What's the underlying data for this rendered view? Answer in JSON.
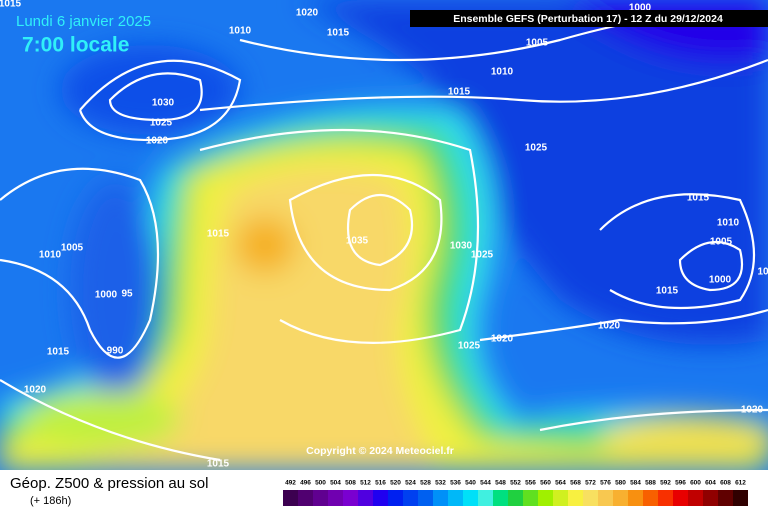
{
  "header": {
    "date": "Lundi 6 janvier 2025",
    "time": "7:00 locale",
    "run": "Ensemble GEFS  (Perturbation 17)  -  12 Z du 29/12/2024"
  },
  "copyright": "Copyright © 2024 Meteociel.fr",
  "footer": {
    "title": "Géop. Z500 & pression au sol",
    "lead": "(+ 186h)"
  },
  "isobar_labels": [
    "1015",
    "1020",
    "1010",
    "1015",
    "1005",
    "1010",
    "1015",
    "1030",
    "1025",
    "1020",
    "1025",
    "1015",
    "1015",
    "1035",
    "1030",
    "1025",
    "1010",
    "1005",
    "1010",
    "1005",
    "1000",
    "1015",
    "1000",
    "95",
    "1020",
    "990",
    "1015",
    "1025",
    "1020",
    "1020",
    "1020",
    "1015",
    "1000",
    "10"
  ],
  "scale": [
    {
      "value": 492,
      "color": "#3c0050"
    },
    {
      "value": 496,
      "color": "#500070"
    },
    {
      "value": 500,
      "color": "#600090"
    },
    {
      "value": 504,
      "color": "#7000b0"
    },
    {
      "value": 508,
      "color": "#7a00d0"
    },
    {
      "value": 512,
      "color": "#5000e0"
    },
    {
      "value": 516,
      "color": "#2000f0"
    },
    {
      "value": 520,
      "color": "#0020f0"
    },
    {
      "value": 524,
      "color": "#0040f0"
    },
    {
      "value": 528,
      "color": "#0060f0"
    },
    {
      "value": 532,
      "color": "#0090f8"
    },
    {
      "value": 536,
      "color": "#00b8f8"
    },
    {
      "value": 540,
      "color": "#00e0f8"
    },
    {
      "value": 544,
      "color": "#40f0e0"
    },
    {
      "value": 548,
      "color": "#00e080"
    },
    {
      "value": 552,
      "color": "#20d040"
    },
    {
      "value": 556,
      "color": "#60e020"
    },
    {
      "value": 560,
      "color": "#a0f000"
    },
    {
      "value": 564,
      "color": "#d0f020"
    },
    {
      "value": 568,
      "color": "#f8f040"
    },
    {
      "value": 572,
      "color": "#f8e060"
    },
    {
      "value": 576,
      "color": "#f8c850"
    },
    {
      "value": 580,
      "color": "#f8b030"
    },
    {
      "value": 584,
      "color": "#f89010"
    },
    {
      "value": 588,
      "color": "#f86000"
    },
    {
      "value": 592,
      "color": "#f83000"
    },
    {
      "value": 596,
      "color": "#e80000"
    },
    {
      "value": 600,
      "color": "#c00000"
    },
    {
      "value": 604,
      "color": "#900000"
    },
    {
      "value": 608,
      "color": "#600000"
    },
    {
      "value": 612,
      "color": "#300000"
    }
  ]
}
